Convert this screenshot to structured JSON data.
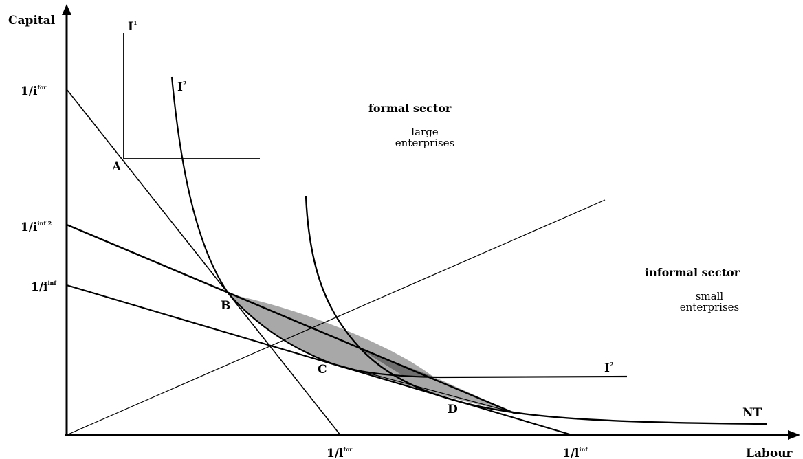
{
  "axes": {
    "y_label": "Capital",
    "x_label": "Labour"
  },
  "y_ticks": {
    "for": {
      "base": "1/i",
      "sup": "for"
    },
    "inf2": {
      "base": "1/i",
      "sup": "inf 2"
    },
    "inf": {
      "base": "1/i",
      "sup": "inf"
    }
  },
  "x_ticks": {
    "for": {
      "base": "1/l",
      "sup": "for"
    },
    "inf": {
      "base": "1/l",
      "sup": "inf"
    }
  },
  "curves": {
    "i1": {
      "base": "I",
      "sup": "1"
    },
    "i2_top": {
      "base": "I",
      "sup": "2"
    },
    "i2_right": {
      "base": "I",
      "sup": "2"
    },
    "nt": "NT"
  },
  "points": {
    "a": "A",
    "b": "B",
    "c": "C",
    "d": "D"
  },
  "regions": {
    "formal": {
      "title": "formal sector",
      "line1": "large",
      "line2": "enterprises"
    },
    "informal": {
      "title": "informal sector",
      "line1": "small",
      "line2": "enterprises"
    }
  },
  "colors": {
    "shade_light": "#a8a8a8",
    "shade_dark": "#6e6e6e",
    "ink": "#000000"
  }
}
